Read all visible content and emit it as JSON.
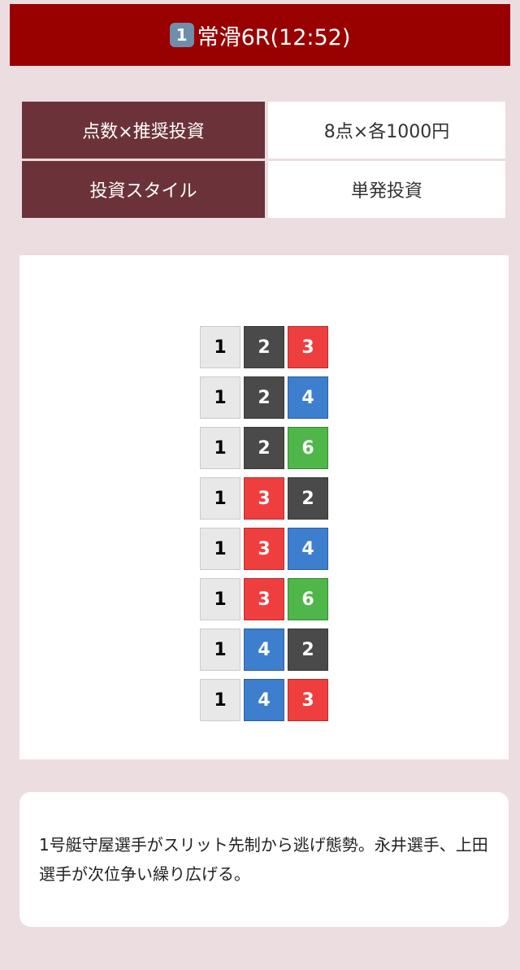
{
  "header": {
    "badge": "1",
    "title": "常滑6R(12:52)"
  },
  "info": [
    {
      "label": "点数×推奨投資",
      "value": "8点×各1000円"
    },
    {
      "label": "投資スタイル",
      "value": "単発投資"
    }
  ],
  "boat_colors": {
    "1": "#e8e8e8",
    "2": "#4a4a4a",
    "3": "#ef3e3e",
    "4": "#3d7fce",
    "5": "#f5d80a",
    "6": "#4fb64a"
  },
  "combinations": [
    [
      "1",
      "2",
      "3"
    ],
    [
      "1",
      "2",
      "4"
    ],
    [
      "1",
      "2",
      "6"
    ],
    [
      "1",
      "3",
      "2"
    ],
    [
      "1",
      "3",
      "4"
    ],
    [
      "1",
      "3",
      "6"
    ],
    [
      "1",
      "4",
      "2"
    ],
    [
      "1",
      "4",
      "3"
    ]
  ],
  "comment": "1号艇守屋選手がスリット先制から逃げ態勢。永井選手、上田選手が次位争い繰り広げる。"
}
